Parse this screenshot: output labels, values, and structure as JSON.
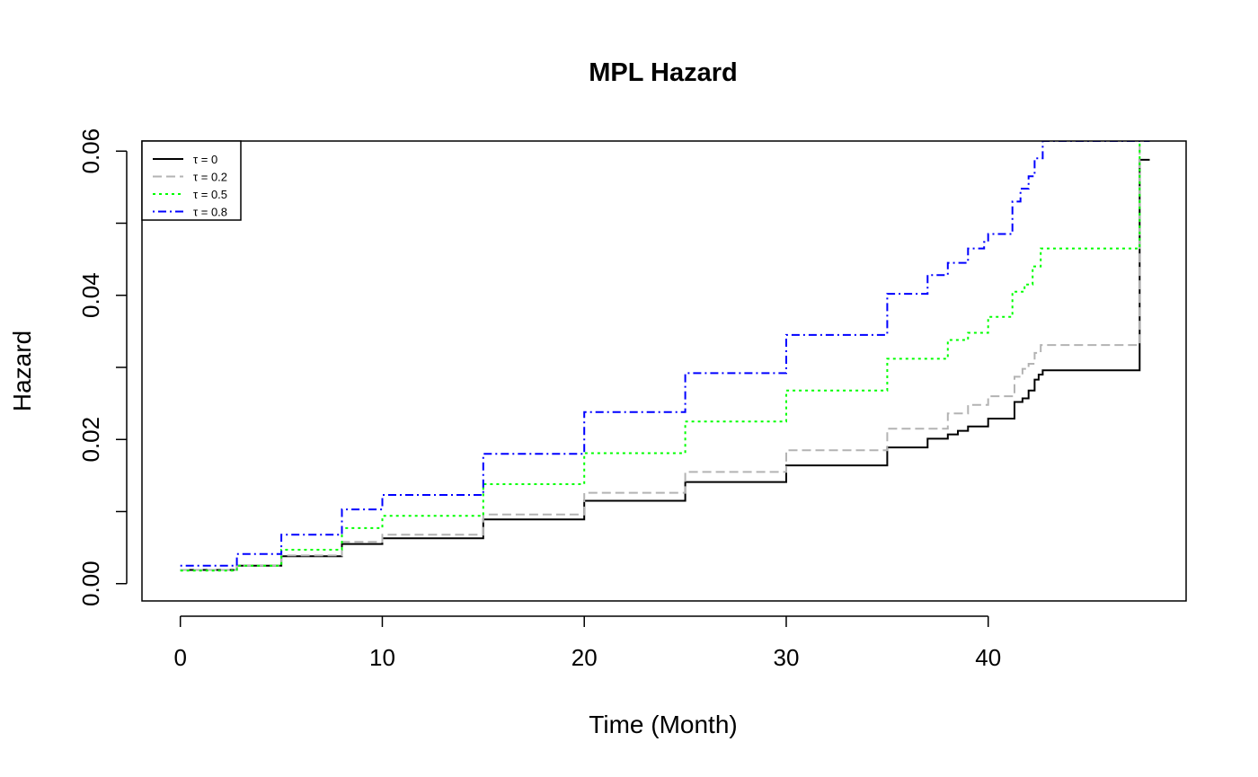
{
  "chart_data": {
    "type": "line",
    "title": "MPL Hazard",
    "xlabel": "Time (Month)",
    "ylabel": "Hazard",
    "xlim": [
      -1.9,
      49.8
    ],
    "ylim": [
      -0.0024,
      0.0614
    ],
    "x_ticks": [
      0,
      10,
      20,
      30,
      40
    ],
    "x_tick_labels": [
      "0",
      "10",
      "20",
      "30",
      "40"
    ],
    "y_ticks": [
      0.0,
      0.01,
      0.02,
      0.03,
      0.04,
      0.05,
      0.06
    ],
    "y_tick_labels": [
      "0.00",
      "",
      "0.02",
      "",
      "0.04",
      "",
      "0.06"
    ],
    "grid": false,
    "legend_position": "top-left",
    "series": [
      {
        "name": "τ = 0",
        "color": "#000000",
        "dash": "solid",
        "x": [
          0,
          2.6,
          2.8,
          5,
          8,
          10,
          15,
          20,
          25,
          30,
          35,
          37,
          38,
          38.5,
          39,
          40,
          41,
          41.3,
          41.7,
          42,
          42.3,
          42.5,
          42.7,
          43,
          47.4,
          47.5,
          48.0
        ],
        "y": [
          0.0019,
          0.0019,
          0.0025,
          0.0038,
          0.0055,
          0.0063,
          0.0089,
          0.0115,
          0.0141,
          0.0164,
          0.0189,
          0.0201,
          0.0207,
          0.0212,
          0.0218,
          0.0229,
          0.0229,
          0.0252,
          0.0257,
          0.0268,
          0.0283,
          0.029,
          0.0296,
          0.0296,
          0.0296,
          0.0588,
          0.0588
        ]
      },
      {
        "name": "τ = 0.2",
        "color": "#b3b3b3",
        "dash": "dashed",
        "x": [
          0,
          2.6,
          2.8,
          5,
          8,
          10,
          15,
          20,
          25,
          30,
          35,
          38,
          39,
          40,
          41,
          41.3,
          41.7,
          42,
          42.3,
          42.6,
          47.4,
          47.5
        ],
        "y": [
          0.0019,
          0.0019,
          0.0025,
          0.0039,
          0.0058,
          0.0068,
          0.0096,
          0.0126,
          0.0155,
          0.0185,
          0.0215,
          0.0236,
          0.0248,
          0.026,
          0.026,
          0.0287,
          0.0298,
          0.0305,
          0.032,
          0.0331,
          0.0331,
          0.0614
        ]
      },
      {
        "name": "τ = 0.5",
        "color": "#00ff00",
        "dash": "dotted",
        "x": [
          0,
          2.6,
          2.8,
          5,
          8,
          10,
          15,
          20,
          25,
          30,
          35,
          38,
          39,
          40,
          41,
          41.2,
          41.8,
          42.2,
          42.6,
          47.4,
          47.5
        ],
        "y": [
          0.0018,
          0.0018,
          0.0025,
          0.0047,
          0.0077,
          0.0094,
          0.0138,
          0.0181,
          0.0225,
          0.0268,
          0.0312,
          0.0338,
          0.0348,
          0.037,
          0.037,
          0.0405,
          0.0415,
          0.044,
          0.0465,
          0.0465,
          0.0614
        ]
      },
      {
        "name": "τ = 0.8",
        "color": "#0000ff",
        "dash": "dotdash",
        "x": [
          0,
          2.6,
          2.8,
          5,
          8,
          10,
          15,
          20,
          25,
          30,
          35,
          37,
          38,
          39,
          39.8,
          40.0,
          41.0,
          41.2,
          41.6,
          42.0,
          42.3,
          42.7,
          48.0
        ],
        "y": [
          0.0025,
          0.0025,
          0.0041,
          0.0068,
          0.0103,
          0.0123,
          0.018,
          0.0238,
          0.0292,
          0.0345,
          0.0402,
          0.0428,
          0.0445,
          0.0465,
          0.0474,
          0.0485,
          0.0485,
          0.053,
          0.0548,
          0.0565,
          0.059,
          0.0614,
          0.0614
        ]
      }
    ]
  }
}
